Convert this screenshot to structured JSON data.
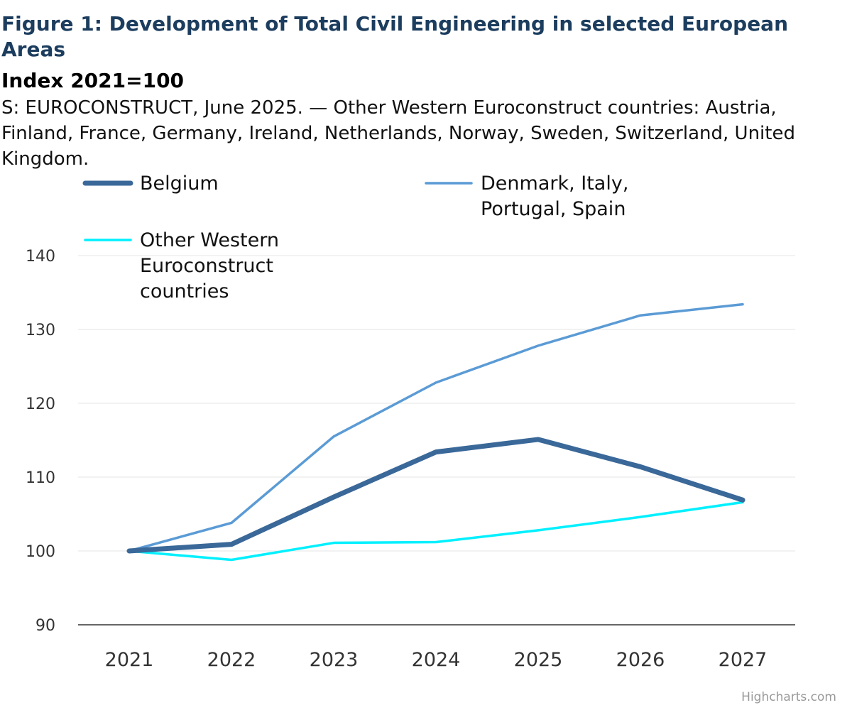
{
  "title": "Figure 1: Development of Total Civil Engineering in selected European Areas",
  "subtitle": "Index 2021=100",
  "note": "S: EUROCONSTRUCT, June 2025. — Other Western Euroconstruct countries: Austria, Finland, France, Germany, Ireland, Netherlands, Norway, Sweden, Switzerland, United Kingdom.",
  "credit": "Highcharts.com",
  "chart_data": {
    "type": "line",
    "title": "Figure 1: Development of Total Civil Engineering in selected European Areas",
    "subtitle": "Index 2021=100",
    "xlabel": "",
    "ylabel": "",
    "x": [
      "2021",
      "2022",
      "2023",
      "2024",
      "2025",
      "2026",
      "2027"
    ],
    "y_ticks": [
      "90",
      "100",
      "110",
      "120",
      "130",
      "140"
    ],
    "ylim": [
      90,
      140
    ],
    "grid": true,
    "legend": "top",
    "series": [
      {
        "name": "Belgium",
        "color": "#3a6899",
        "values": [
          100,
          100.9,
          107.3,
          113.4,
          115.1,
          111.4,
          106.9
        ]
      },
      {
        "name": "Denmark, Italy, Portugal, Spain",
        "color": "#5b9bd5",
        "values": [
          100,
          103.8,
          115.5,
          122.8,
          127.8,
          131.9,
          133.4
        ]
      },
      {
        "name": "Other Western Euroconstruct countries",
        "color": "#00f0ff",
        "values": [
          100,
          98.8,
          101.1,
          101.2,
          102.8,
          104.6,
          106.6
        ]
      }
    ]
  }
}
